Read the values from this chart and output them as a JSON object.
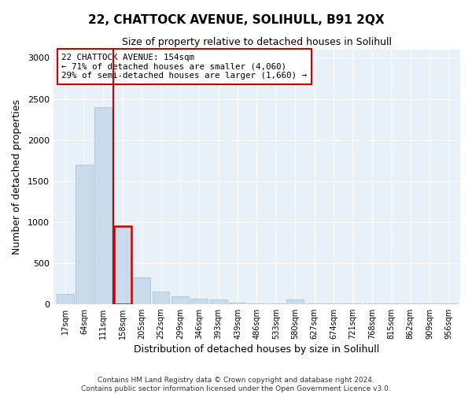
{
  "title": "22, CHATTOCK AVENUE, SOLIHULL, B91 2QX",
  "subtitle": "Size of property relative to detached houses in Solihull",
  "xlabel": "Distribution of detached houses by size in Solihull",
  "ylabel": "Number of detached properties",
  "bar_color": "#c9daea",
  "bar_edge_color": "#a0bcd0",
  "highlight_bar_edge_color": "#cc0000",
  "background_color": "#ffffff",
  "plot_bg_color": "#e8f0f8",
  "categories": [
    "17sqm",
    "64sqm",
    "111sqm",
    "158sqm",
    "205sqm",
    "252sqm",
    "299sqm",
    "346sqm",
    "393sqm",
    "439sqm",
    "486sqm",
    "533sqm",
    "580sqm",
    "627sqm",
    "674sqm",
    "721sqm",
    "768sqm",
    "815sqm",
    "862sqm",
    "909sqm",
    "956sqm"
  ],
  "values": [
    120,
    1700,
    2400,
    950,
    325,
    155,
    90,
    65,
    50,
    12,
    5,
    5,
    50,
    8,
    5,
    5,
    5,
    5,
    5,
    5,
    5
  ],
  "ylim": [
    0,
    3100
  ],
  "yticks": [
    0,
    500,
    1000,
    1500,
    2000,
    2500,
    3000
  ],
  "highlight_index": 3,
  "annotation_line1": "22 CHATTOCK AVENUE: 154sqm",
  "annotation_line2": "← 71% of detached houses are smaller (4,060)",
  "annotation_line3": "29% of semi-detached houses are larger (1,660) →",
  "footer_line1": "Contains HM Land Registry data © Crown copyright and database right 2024.",
  "footer_line2": "Contains public sector information licensed under the Open Government Licence v3.0.",
  "figsize": [
    6.0,
    5.0
  ],
  "dpi": 100
}
